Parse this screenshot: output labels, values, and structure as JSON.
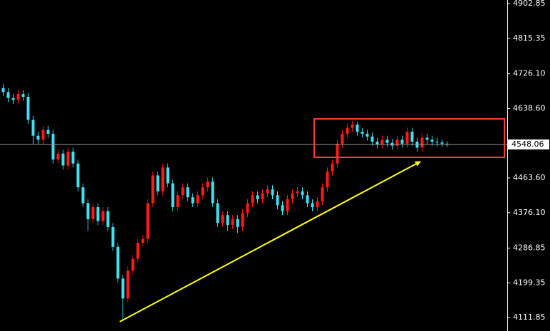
{
  "chart_data": {
    "type": "candlestick",
    "up_color": "#ff1a1a",
    "down_color": "#3fe0f0",
    "ylim": [
      4078,
      4912
    ],
    "yticks": [
      4111.85,
      4199.35,
      4286.85,
      {
        "value": 4376.1,
        "label": "4376.10"
      },
      {
        "value": 4463.6,
        "label": "4463.60"
      },
      {
        "value": 4638.6,
        "label": "4638.60"
      },
      {
        "value": 4726.1,
        "label": "4726.10"
      },
      4815.35,
      4902.85
    ],
    "last_price": 4548.06,
    "grid": false,
    "open": [
      4690,
      4680,
      4665,
      4660,
      4675,
      4668,
      4610,
      4570,
      4560,
      4585,
      4575,
      4510,
      4525,
      4495,
      4530,
      4500,
      4440,
      4400,
      4360,
      4390,
      4355,
      4380,
      4340,
      4290,
      4210,
      4160,
      4230,
      4260,
      4300,
      4310,
      4400,
      4470,
      4430,
      4490,
      4450,
      4390,
      4420,
      4440,
      4415,
      4400,
      4420,
      4440,
      4455,
      4400,
      4350,
      4370,
      4345,
      4360,
      4340,
      4375,
      4400,
      4420,
      4410,
      4425,
      4435,
      4420,
      4395,
      4380,
      4410,
      4425,
      4430,
      4420,
      4400,
      4390,
      4405,
      4440,
      4480,
      4500,
      4550,
      4575,
      4590,
      4598,
      4580,
      4575,
      4568,
      4555,
      4548,
      4560,
      4552,
      4545,
      4560,
      4550,
      4580,
      4555,
      4540,
      4565,
      4560,
      4555,
      4553,
      4550
    ],
    "high": [
      4700,
      4690,
      4675,
      4685,
      4685,
      4678,
      4620,
      4580,
      4595,
      4595,
      4585,
      4535,
      4535,
      4540,
      4540,
      4510,
      4450,
      4410,
      4400,
      4400,
      4390,
      4390,
      4350,
      4300,
      4220,
      4240,
      4270,
      4310,
      4320,
      4410,
      4480,
      4480,
      4500,
      4500,
      4460,
      4430,
      4450,
      4450,
      4425,
      4430,
      4450,
      4465,
      4465,
      4410,
      4380,
      4380,
      4370,
      4370,
      4385,
      4410,
      4430,
      4430,
      4435,
      4445,
      4445,
      4430,
      4405,
      4420,
      4435,
      4440,
      4440,
      4430,
      4410,
      4415,
      4450,
      4490,
      4510,
      4560,
      4585,
      4600,
      4608,
      4605,
      4590,
      4585,
      4578,
      4565,
      4570,
      4570,
      4562,
      4570,
      4570,
      4590,
      4590,
      4565,
      4575,
      4575,
      4570,
      4565,
      4560,
      4556
    ],
    "low": [
      4670,
      4655,
      4650,
      4650,
      4658,
      4600,
      4550,
      4550,
      4550,
      4565,
      4500,
      4500,
      4485,
      4485,
      4490,
      4430,
      4390,
      4330,
      4350,
      4345,
      4345,
      4330,
      4280,
      4200,
      4105,
      4150,
      4220,
      4250,
      4290,
      4300,
      4390,
      4420,
      4420,
      4440,
      4380,
      4380,
      4410,
      4405,
      4390,
      4390,
      4410,
      4430,
      4390,
      4340,
      4340,
      4330,
      4335,
      4325,
      4330,
      4365,
      4390,
      4400,
      4400,
      4415,
      4410,
      4385,
      4370,
      4370,
      4400,
      4415,
      4410,
      4390,
      4380,
      4380,
      4395,
      4430,
      4470,
      4490,
      4540,
      4565,
      4580,
      4570,
      4565,
      4558,
      4545,
      4538,
      4538,
      4542,
      4535,
      4535,
      4540,
      4540,
      4545,
      4530,
      4530,
      4550,
      4545,
      4543,
      4542,
      4542
    ],
    "close": [
      4680,
      4665,
      4660,
      4675,
      4668,
      4610,
      4570,
      4560,
      4585,
      4575,
      4510,
      4525,
      4495,
      4530,
      4500,
      4440,
      4400,
      4360,
      4390,
      4355,
      4380,
      4340,
      4290,
      4210,
      4160,
      4230,
      4260,
      4300,
      4310,
      4400,
      4470,
      4430,
      4490,
      4450,
      4390,
      4420,
      4440,
      4415,
      4400,
      4420,
      4440,
      4455,
      4400,
      4350,
      4370,
      4345,
      4360,
      4340,
      4375,
      4400,
      4420,
      4410,
      4425,
      4435,
      4420,
      4395,
      4380,
      4410,
      4425,
      4430,
      4420,
      4400,
      4390,
      4405,
      4440,
      4480,
      4500,
      4550,
      4575,
      4590,
      4598,
      4580,
      4575,
      4568,
      4555,
      4548,
      4560,
      4552,
      4545,
      4560,
      4550,
      4580,
      4555,
      4540,
      4565,
      4560,
      4555,
      4553,
      4550,
      4548.06
    ]
  }
}
